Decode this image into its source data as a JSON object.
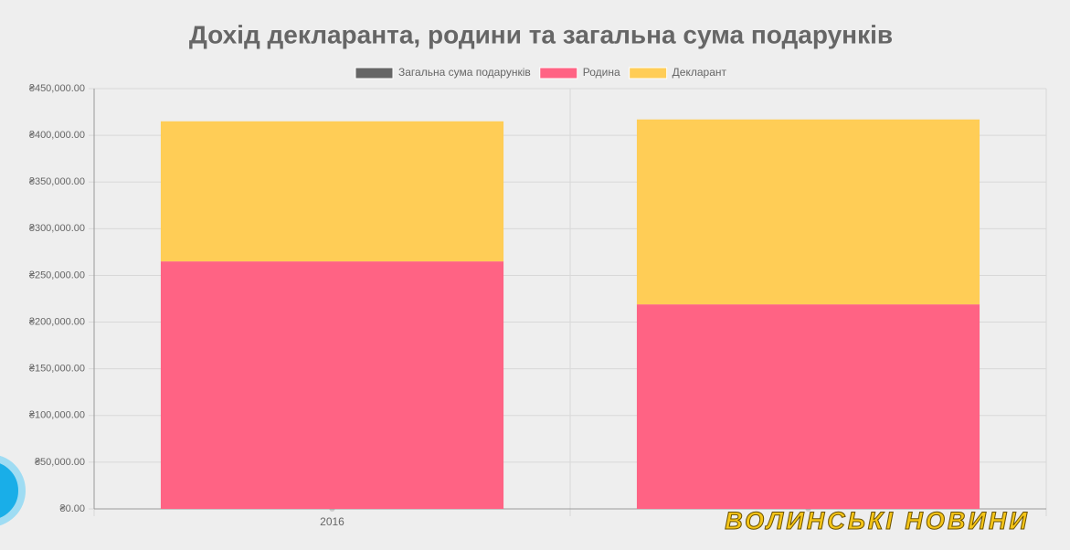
{
  "chart_data": {
    "type": "bar",
    "stacked": true,
    "title": "Дохід декларанта, родини та загальна сума подарунків",
    "categories": [
      "2016",
      null
    ],
    "series": [
      {
        "name": "Загальна сума подарунків",
        "color": "#666666",
        "values": [
          0,
          0
        ]
      },
      {
        "name": "Родина",
        "color": "#ff6384",
        "values": [
          265000,
          219000
        ]
      },
      {
        "name": "Декларант",
        "color": "#ffcd56",
        "values": [
          150000,
          198000
        ]
      }
    ],
    "ylim": [
      0,
      450000
    ],
    "yticks": [
      {
        "value": 0,
        "label": "₴0.00"
      },
      {
        "value": 50000,
        "label": "₴50,000.00"
      },
      {
        "value": 100000,
        "label": "₴100,000.00"
      },
      {
        "value": 150000,
        "label": "₴150,000.00"
      },
      {
        "value": 200000,
        "label": "₴200,000.00"
      },
      {
        "value": 250000,
        "label": "₴250,000.00"
      },
      {
        "value": 300000,
        "label": "₴300,000.00"
      },
      {
        "value": 350000,
        "label": "₴350,000.00"
      },
      {
        "value": 400000,
        "label": "₴400,000.00"
      },
      {
        "value": 450000,
        "label": "₴450,000.00"
      }
    ],
    "grid": true,
    "legend": "top",
    "watermark": "ВОЛИНСЬКІ НОВИНИ"
  }
}
